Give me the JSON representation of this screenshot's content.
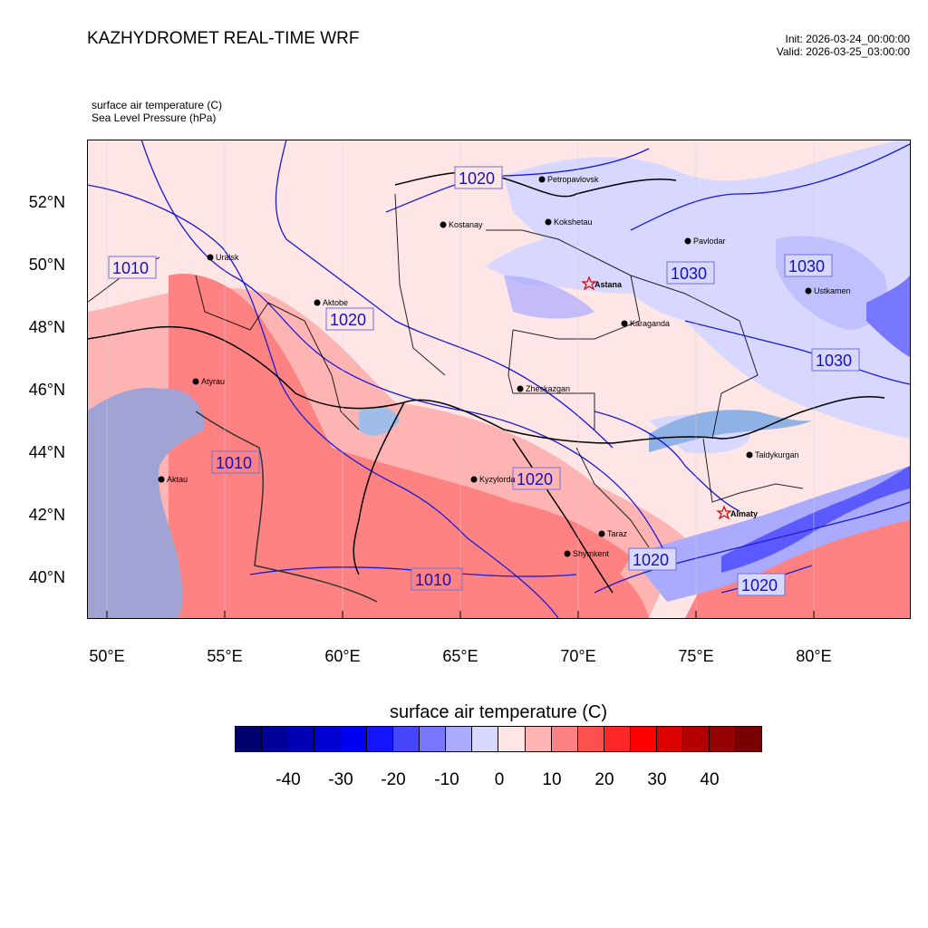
{
  "header": {
    "title": "KAZHYDROMET REAL-TIME WRF",
    "init": "Init: 2026-03-24_00:00:00",
    "valid": "Valid: 2026-03-25_03:00:00"
  },
  "fields": {
    "line1": "surface air temperature   (C)",
    "line2": "Sea Level Pressure   (hPa)"
  },
  "map": {
    "lat_labels": [
      "52°N",
      "50°N",
      "48°N",
      "46°N",
      "44°N",
      "42°N",
      "40°N"
    ],
    "lon_labels": [
      "50°E",
      "55°E",
      "60°E",
      "65°E",
      "70°E",
      "75°E",
      "80°E"
    ],
    "cities": [
      {
        "name": "Petropavlovsk",
        "capital": false
      },
      {
        "name": "Kostanay",
        "capital": false
      },
      {
        "name": "Kokshetau",
        "capital": false
      },
      {
        "name": "Pavlodar",
        "capital": false
      },
      {
        "name": "Uralsk",
        "capital": false
      },
      {
        "name": "Astana",
        "capital": true
      },
      {
        "name": "Ustkamen",
        "capital": false
      },
      {
        "name": "Aktobe",
        "capital": false
      },
      {
        "name": "Karaganda",
        "capital": false
      },
      {
        "name": "Atyrau",
        "capital": false
      },
      {
        "name": "Zheskazgan",
        "capital": false
      },
      {
        "name": "Taldykurgan",
        "capital": false
      },
      {
        "name": "Aktau",
        "capital": false
      },
      {
        "name": "Kyzylorda",
        "capital": false
      },
      {
        "name": "Almaty",
        "capital": true
      },
      {
        "name": "Taraz",
        "capital": false
      },
      {
        "name": "Shymkent",
        "capital": false
      }
    ],
    "isobar_labels": [
      "1020",
      "1010",
      "1030",
      "1030",
      "1020",
      "1030",
      "1010",
      "1020",
      "1020",
      "1010",
      "1020"
    ]
  },
  "colorbar": {
    "title": "surface air temperature  (C)",
    "labels": [
      "-40",
      "-30",
      "-20",
      "-10",
      "0",
      "10",
      "20",
      "30",
      "40"
    ],
    "colors": [
      "#00006e",
      "#000096",
      "#0000b4",
      "#0000d2",
      "#0000f0",
      "#1414ff",
      "#4646ff",
      "#7878ff",
      "#aaaaff",
      "#d7d7ff",
      "#ffe6e6",
      "#ffb4b4",
      "#ff8282",
      "#ff5050",
      "#ff2828",
      "#ff0000",
      "#dc0000",
      "#b40000",
      "#960000",
      "#780000"
    ]
  }
}
